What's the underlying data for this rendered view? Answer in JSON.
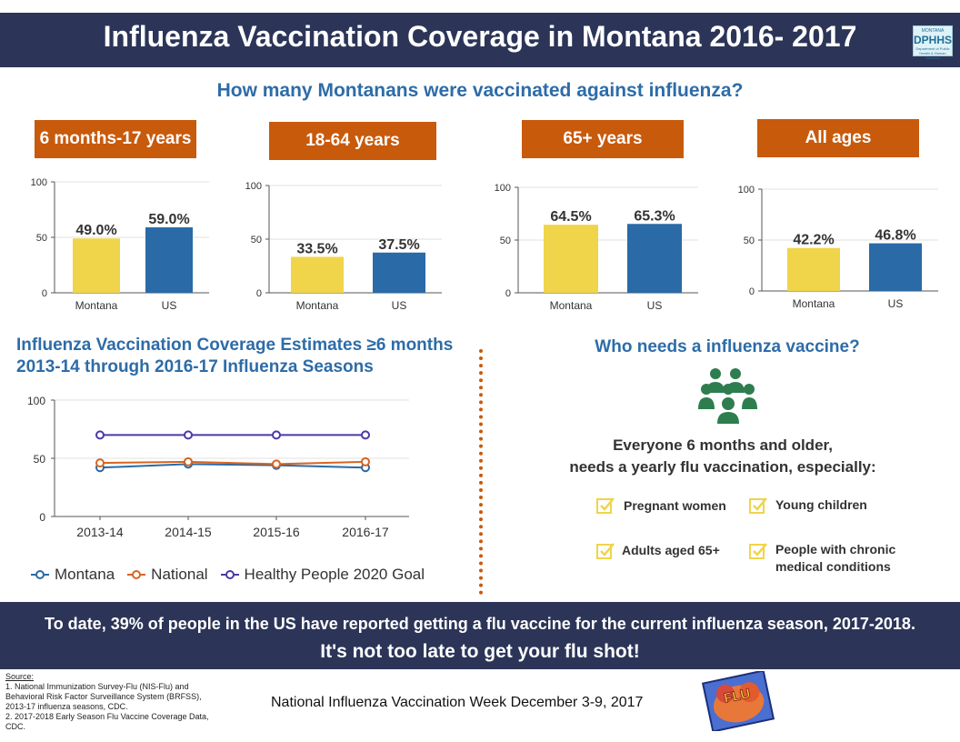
{
  "header": {
    "title": "Influenza Vaccination Coverage in Montana 2016- 2017"
  },
  "logo": {
    "top": "MONTANA",
    "main": "DPHHS",
    "sub": "Department of Public Health & Human Services"
  },
  "subtitle": "How many Montanans were vaccinated against influenza?",
  "age_groups": [
    "6 months-17 years",
    "18-64 years",
    "65+ years",
    "All ages"
  ],
  "chart_data": [
    {
      "type": "bar",
      "title": "6 months-17 years",
      "categories": [
        "Montana",
        "US"
      ],
      "values": [
        49.0,
        59.0
      ],
      "labels": [
        "49.0%",
        "59.0%"
      ],
      "ylim": [
        0,
        100
      ],
      "yticks": [
        0,
        50,
        100
      ],
      "colors": [
        "#f0d44a",
        "#2a6aa6"
      ]
    },
    {
      "type": "bar",
      "title": "18-64 years",
      "categories": [
        "Montana",
        "US"
      ],
      "values": [
        33.5,
        37.5
      ],
      "labels": [
        "33.5%",
        "37.5%"
      ],
      "ylim": [
        0,
        100
      ],
      "yticks": [
        0,
        50,
        100
      ],
      "colors": [
        "#f0d44a",
        "#2a6aa6"
      ]
    },
    {
      "type": "bar",
      "title": "65+ years",
      "categories": [
        "Montana",
        "US"
      ],
      "values": [
        64.5,
        65.3
      ],
      "labels": [
        "64.5%",
        "65.3%"
      ],
      "ylim": [
        0,
        100
      ],
      "yticks": [
        0,
        50,
        100
      ],
      "colors": [
        "#f0d44a",
        "#2a6aa6"
      ]
    },
    {
      "type": "bar",
      "title": "All ages",
      "categories": [
        "Montana",
        "US"
      ],
      "values": [
        42.2,
        46.8
      ],
      "labels": [
        "42.2%",
        "46.8%"
      ],
      "ylim": [
        0,
        100
      ],
      "yticks": [
        0,
        50,
        100
      ],
      "colors": [
        "#f0d44a",
        "#2a6aa6"
      ]
    },
    {
      "type": "line",
      "title": "Influenza Vaccination Coverage Estimates ≥6 months 2013-14 through 2016-17 Influenza Seasons",
      "categories": [
        "2013-14",
        "2014-15",
        "2015-16",
        "2016-17"
      ],
      "ylim": [
        0,
        100
      ],
      "yticks": [
        0,
        50,
        100
      ],
      "series": [
        {
          "name": "Montana",
          "values": [
            42,
            45,
            44,
            42
          ],
          "color": "#2a6aa6"
        },
        {
          "name": "National",
          "values": [
            46,
            47,
            45,
            47
          ],
          "color": "#d9641e"
        },
        {
          "name": "Healthy People 2020 Goal",
          "values": [
            70,
            70,
            70,
            70
          ],
          "color": "#4a3aa8"
        }
      ]
    }
  ],
  "line_section": {
    "title_l1": "Influenza Vaccination Coverage Estimates ≥6 months",
    "title_l2": "2013-14 through 2016-17 Influenza Seasons"
  },
  "legend": [
    "Montana",
    "National",
    "Healthy People 2020 Goal"
  ],
  "who": {
    "title": "Who needs a influenza vaccine?",
    "line1": "Everyone 6 months and older,",
    "line2": "needs a yearly flu vaccination, especially:",
    "items": [
      "Pregnant women",
      "Young children",
      "Adults aged 65+",
      "People with chronic",
      "medical conditions"
    ]
  },
  "banner": {
    "line1": "To date, 39% of people in the US have reported getting a flu vaccine for the current influenza season, 2017-2018.",
    "line2": "It's not too late to get your flu shot!"
  },
  "source": {
    "head": "Source:",
    "l1": "1. National Immunization Survey-Flu (NIS-Flu) and",
    "l2": "Behavioral Risk Factor Surveillance System (BRFSS),",
    "l3": "2013-17 influenza seasons, CDC.",
    "l4": "2. 2017-2018 Early Season Flu Vaccine Coverage Data,",
    "l5": "CDC."
  },
  "footer": {
    "nivw": "National Influenza Vaccination Week December 3-9, 2017",
    "flu_word": "FLU"
  },
  "colors": {
    "navy": "#2c3558",
    "orange": "#c85a0c",
    "blue_text": "#2d6ca8",
    "yellow": "#f0d44a",
    "blue_bar": "#2a6aa6",
    "green": "#2e7d4f"
  }
}
